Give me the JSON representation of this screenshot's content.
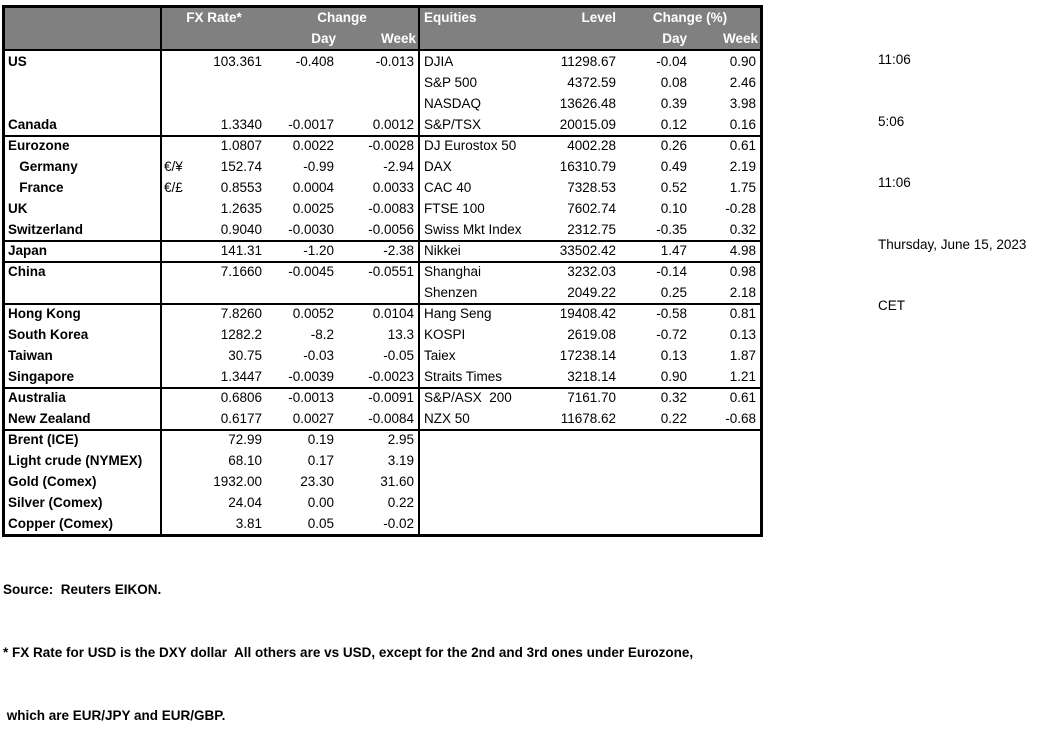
{
  "colors": {
    "header_bg": "#808080",
    "header_text": "#FFFFFF",
    "border": "#000000",
    "text": "#000000"
  },
  "timestamps": [
    "11:06",
    "5:06",
    "11:06",
    "Thursday, June 15, 2023",
    "CET"
  ],
  "fx_table": {
    "header": {
      "rate": "FX Rate*",
      "change": "Change",
      "day": "Day",
      "week": "Week"
    },
    "rows": [
      {
        "name": "US",
        "sym": "",
        "rate": "103.361",
        "day": "-0.408",
        "week": "-0.013",
        "group_start": false
      },
      {
        "name": "",
        "sym": "",
        "rate": "",
        "day": "",
        "week": "",
        "group_start": false
      },
      {
        "name": "",
        "sym": "",
        "rate": "",
        "day": "",
        "week": "",
        "group_start": false
      },
      {
        "name": "Canada",
        "sym": "",
        "rate": "1.3340",
        "day": "-0.0017",
        "week": "0.0012",
        "group_start": false
      },
      {
        "name": "Eurozone",
        "sym": "",
        "rate": "1.0807",
        "day": "0.0022",
        "week": "-0.0028",
        "group_start": true
      },
      {
        "name": "   Germany",
        "sym": "€/¥",
        "rate": "152.74",
        "day": "-0.99",
        "week": "-2.94",
        "group_start": false
      },
      {
        "name": "   France",
        "sym": "€/£",
        "rate": "0.8553",
        "day": "0.0004",
        "week": "0.0033",
        "group_start": false
      },
      {
        "name": "UK",
        "sym": "",
        "rate": "1.2635",
        "day": "0.0025",
        "week": "-0.0083",
        "group_start": false
      },
      {
        "name": "Switzerland",
        "sym": "",
        "rate": "0.9040",
        "day": "-0.0030",
        "week": "-0.0056",
        "group_start": false
      },
      {
        "name": "Japan",
        "sym": "",
        "rate": "141.31",
        "day": "-1.20",
        "week": "-2.38",
        "group_start": true
      },
      {
        "name": "China",
        "sym": "",
        "rate": "7.1660",
        "day": "-0.0045",
        "week": "-0.0551",
        "group_start": true
      },
      {
        "name": "",
        "sym": "",
        "rate": "",
        "day": "",
        "week": "",
        "group_start": false
      },
      {
        "name": "Hong Kong",
        "sym": "",
        "rate": "7.8260",
        "day": "0.0052",
        "week": "0.0104",
        "group_start": true
      },
      {
        "name": "South Korea",
        "sym": "",
        "rate": "1282.2",
        "day": "-8.2",
        "week": "13.3",
        "group_start": false
      },
      {
        "name": "Taiwan",
        "sym": "",
        "rate": "30.75",
        "day": "-0.03",
        "week": "-0.05",
        "group_start": false
      },
      {
        "name": "Singapore",
        "sym": "",
        "rate": "1.3447",
        "day": "-0.0039",
        "week": "-0.0023",
        "group_start": false
      },
      {
        "name": "Australia",
        "sym": "",
        "rate": "0.6806",
        "day": "-0.0013",
        "week": "-0.0091",
        "group_start": true
      },
      {
        "name": "New Zealand",
        "sym": "",
        "rate": "0.6177",
        "day": "0.0027",
        "week": "-0.0084",
        "group_start": false
      },
      {
        "name": "Brent (ICE)",
        "sym": "",
        "rate": "72.99",
        "day": "0.19",
        "week": "2.95",
        "group_start": true
      },
      {
        "name": "Light crude (NYMEX)",
        "sym": "",
        "rate": "68.10",
        "day": "0.17",
        "week": "3.19",
        "group_start": false
      },
      {
        "name": "Gold (Comex)",
        "sym": "",
        "rate": "1932.00",
        "day": "23.30",
        "week": "31.60",
        "group_start": false
      },
      {
        "name": "Silver (Comex)",
        "sym": "",
        "rate": "24.04",
        "day": "0.00",
        "week": "0.22",
        "group_start": false
      },
      {
        "name": "Copper (Comex)",
        "sym": "",
        "rate": "3.81",
        "day": "0.05",
        "week": "-0.02",
        "group_start": false
      }
    ]
  },
  "equities_table": {
    "header": {
      "name": "Equities",
      "level": "Level",
      "change": "Change (%)",
      "day": "Day",
      "week": "Week"
    },
    "rows": [
      {
        "name": "DJIA",
        "level": "11298.67",
        "day": "-0.04",
        "week": "0.90",
        "group_start": false
      },
      {
        "name": "S&P 500",
        "level": "4372.59",
        "day": "0.08",
        "week": "2.46",
        "group_start": false
      },
      {
        "name": "NASDAQ",
        "level": "13626.48",
        "day": "0.39",
        "week": "3.98",
        "group_start": false
      },
      {
        "name": "S&P/TSX",
        "level": "20015.09",
        "day": "0.12",
        "week": "0.16",
        "group_start": false
      },
      {
        "name": "DJ Eurostox 50",
        "level": "4002.28",
        "day": "0.26",
        "week": "0.61",
        "group_start": true
      },
      {
        "name": "DAX",
        "level": "16310.79",
        "day": "0.49",
        "week": "2.19",
        "group_start": false
      },
      {
        "name": "CAC 40",
        "level": "7328.53",
        "day": "0.52",
        "week": "1.75",
        "group_start": false
      },
      {
        "name": "FTSE 100",
        "level": "7602.74",
        "day": "0.10",
        "week": "-0.28",
        "group_start": false
      },
      {
        "name": "Swiss Mkt Index",
        "level": "2312.75",
        "day": "-0.35",
        "week": "0.32",
        "group_start": false
      },
      {
        "name": "Nikkei",
        "level": "33502.42",
        "day": "1.47",
        "week": "4.98",
        "group_start": true
      },
      {
        "name": "Shanghai",
        "level": "3232.03",
        "day": "-0.14",
        "week": "0.98",
        "group_start": true
      },
      {
        "name": "Shenzen",
        "level": "2049.22",
        "day": "0.25",
        "week": "2.18",
        "group_start": false
      },
      {
        "name": "Hang Seng",
        "level": "19408.42",
        "day": "-0.58",
        "week": "0.81",
        "group_start": true
      },
      {
        "name": "KOSPI",
        "level": "2619.08",
        "day": "-0.72",
        "week": "0.13",
        "group_start": false
      },
      {
        "name": "Taiex",
        "level": "17238.14",
        "day": "0.13",
        "week": "1.87",
        "group_start": false
      },
      {
        "name": "Straits Times",
        "level": "3218.14",
        "day": "0.90",
        "week": "1.21",
        "group_start": false
      },
      {
        "name": "S&P/ASX  200",
        "level": "7161.70",
        "day": "0.32",
        "week": "0.61",
        "group_start": true
      },
      {
        "name": "NZX 50",
        "level": "11678.62",
        "day": "0.22",
        "week": "-0.68",
        "group_start": false
      },
      {
        "name": "",
        "level": "",
        "day": "",
        "week": "",
        "group_start": true
      },
      {
        "name": "",
        "level": "",
        "day": "",
        "week": "",
        "group_start": false
      },
      {
        "name": "",
        "level": "",
        "day": "",
        "week": "",
        "group_start": false
      },
      {
        "name": "",
        "level": "",
        "day": "",
        "week": "",
        "group_start": false
      },
      {
        "name": "",
        "level": "",
        "day": "",
        "week": "",
        "group_start": false
      }
    ]
  },
  "footer": {
    "source": "Source:  Reuters EIKON.",
    "note1": "* FX Rate for USD is the DXY dollar  All others are vs USD, except for the 2nd and 3rd ones under Eurozone,",
    "note2": " which are EUR/JPY and EUR/GBP."
  }
}
